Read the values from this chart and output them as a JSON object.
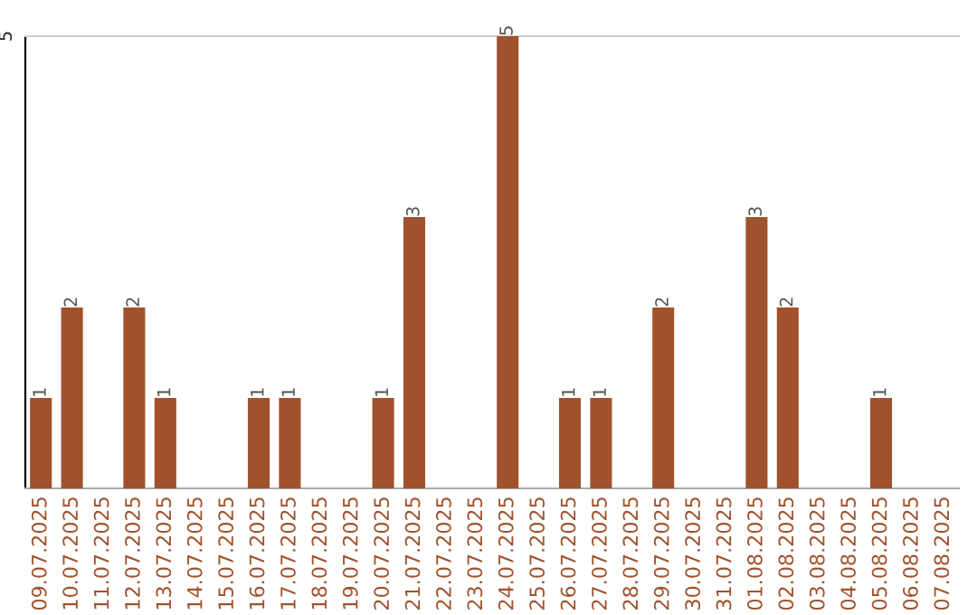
{
  "chart_data": {
    "type": "bar",
    "categories": [
      "09.07.2025",
      "10.07.2025",
      "11.07.2025",
      "12.07.2025",
      "13.07.2025",
      "14.07.2025",
      "15.07.2025",
      "16.07.2025",
      "17.07.2025",
      "18.07.2025",
      "19.07.2025",
      "20.07.2025",
      "21.07.2025",
      "22.07.2025",
      "23.07.2025",
      "24.07.2025",
      "25.07.2025",
      "26.07.2025",
      "27.07.2025",
      "28.07.2025",
      "29.07.2025",
      "30.07.2025",
      "31.07.2025",
      "01.08.2025",
      "02.08.2025",
      "03.08.2025",
      "04.08.2025",
      "05.08.2025",
      "06.08.2025",
      "07.08.2025"
    ],
    "values": [
      1,
      2,
      0,
      2,
      1,
      0,
      0,
      1,
      1,
      0,
      0,
      1,
      3,
      0,
      0,
      5,
      0,
      1,
      1,
      0,
      2,
      0,
      0,
      3,
      2,
      0,
      0,
      1,
      0,
      0
    ],
    "value_labels": [
      "1",
      "2",
      null,
      "2",
      "1",
      null,
      null,
      "1",
      "1",
      null,
      null,
      "1",
      "3",
      null,
      null,
      "5",
      null,
      "1",
      "1",
      null,
      "2",
      null,
      null,
      "3",
      "2",
      null,
      null,
      "1",
      null,
      null
    ],
    "color": "#a0522d",
    "ylim": [
      0,
      5
    ],
    "yticks": [
      5
    ],
    "legend": false
  }
}
